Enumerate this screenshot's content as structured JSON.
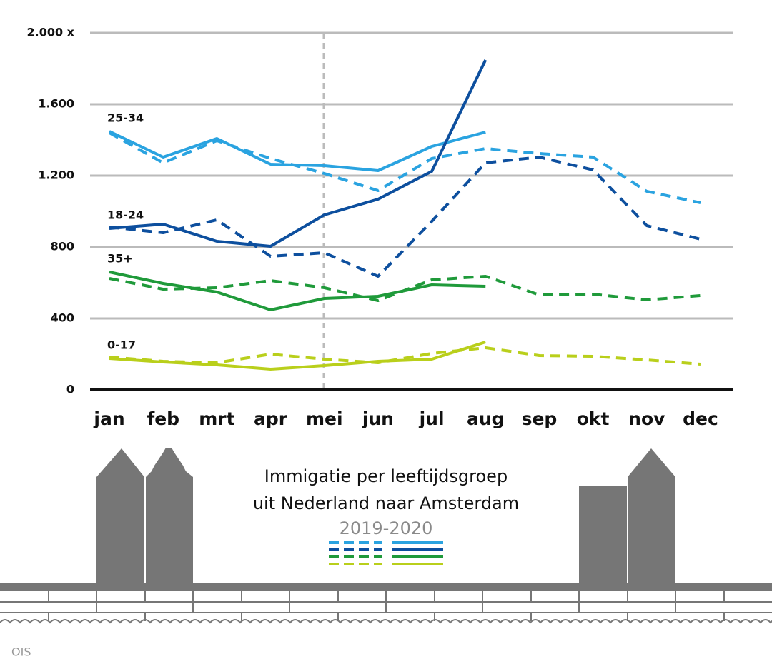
{
  "chart_data": {
    "type": "line",
    "title": "Immigatie per leeftijdsgroep",
    "subtitle": "uit Nederland naar Amsterdam",
    "legend_label": "2019-2020",
    "source": "OIS",
    "categories": [
      "jan",
      "feb",
      "mrt",
      "apr",
      "mei",
      "jun",
      "jul",
      "aug",
      "sep",
      "okt",
      "nov",
      "dec"
    ],
    "line_styles": {
      "values": "dashed",
      "values_2020": "solid"
    },
    "series": [
      {
        "name": "25-34",
        "color": "#2aa3e0",
        "values": [
          1440,
          1272,
          1396,
          1296,
          1212,
          1116,
          1296,
          1352,
          1324,
          1304,
          1112,
          1048
        ],
        "values_2020": [
          1448,
          1304,
          1408,
          1264,
          1256,
          1228,
          1364,
          1444,
          null,
          null,
          null,
          null
        ]
      },
      {
        "name": "18-24",
        "color": "#0d4f9e",
        "values": [
          912,
          880,
          952,
          748,
          768,
          636,
          944,
          1272,
          1304,
          1232,
          920,
          844
        ],
        "values_2020": [
          904,
          928,
          832,
          804,
          980,
          1068,
          1224,
          1848,
          null,
          null,
          null,
          null
        ]
      },
      {
        "name": "35+",
        "color": "#1f9a3a",
        "values": [
          624,
          564,
          572,
          612,
          572,
          500,
          616,
          636,
          532,
          536,
          504,
          528
        ],
        "values_2020": [
          660,
          596,
          548,
          448,
          512,
          524,
          588,
          580,
          null,
          null,
          null,
          null
        ]
      },
      {
        "name": "0-17",
        "color": "#b9cf1b",
        "values": [
          184,
          160,
          152,
          200,
          172,
          152,
          204,
          236,
          192,
          188,
          168,
          144
        ],
        "values_2020": [
          176,
          156,
          140,
          116,
          136,
          160,
          172,
          268,
          null,
          null,
          null,
          null
        ]
      }
    ],
    "ylim": [
      0,
      2000
    ],
    "yticks": [
      0,
      400,
      800,
      {
        "value": 1200,
        "label": "1.200"
      },
      {
        "value": 1600,
        "label": "1.600"
      },
      {
        "value": 2000,
        "label": "2.000 x"
      }
    ],
    "grid": true
  }
}
